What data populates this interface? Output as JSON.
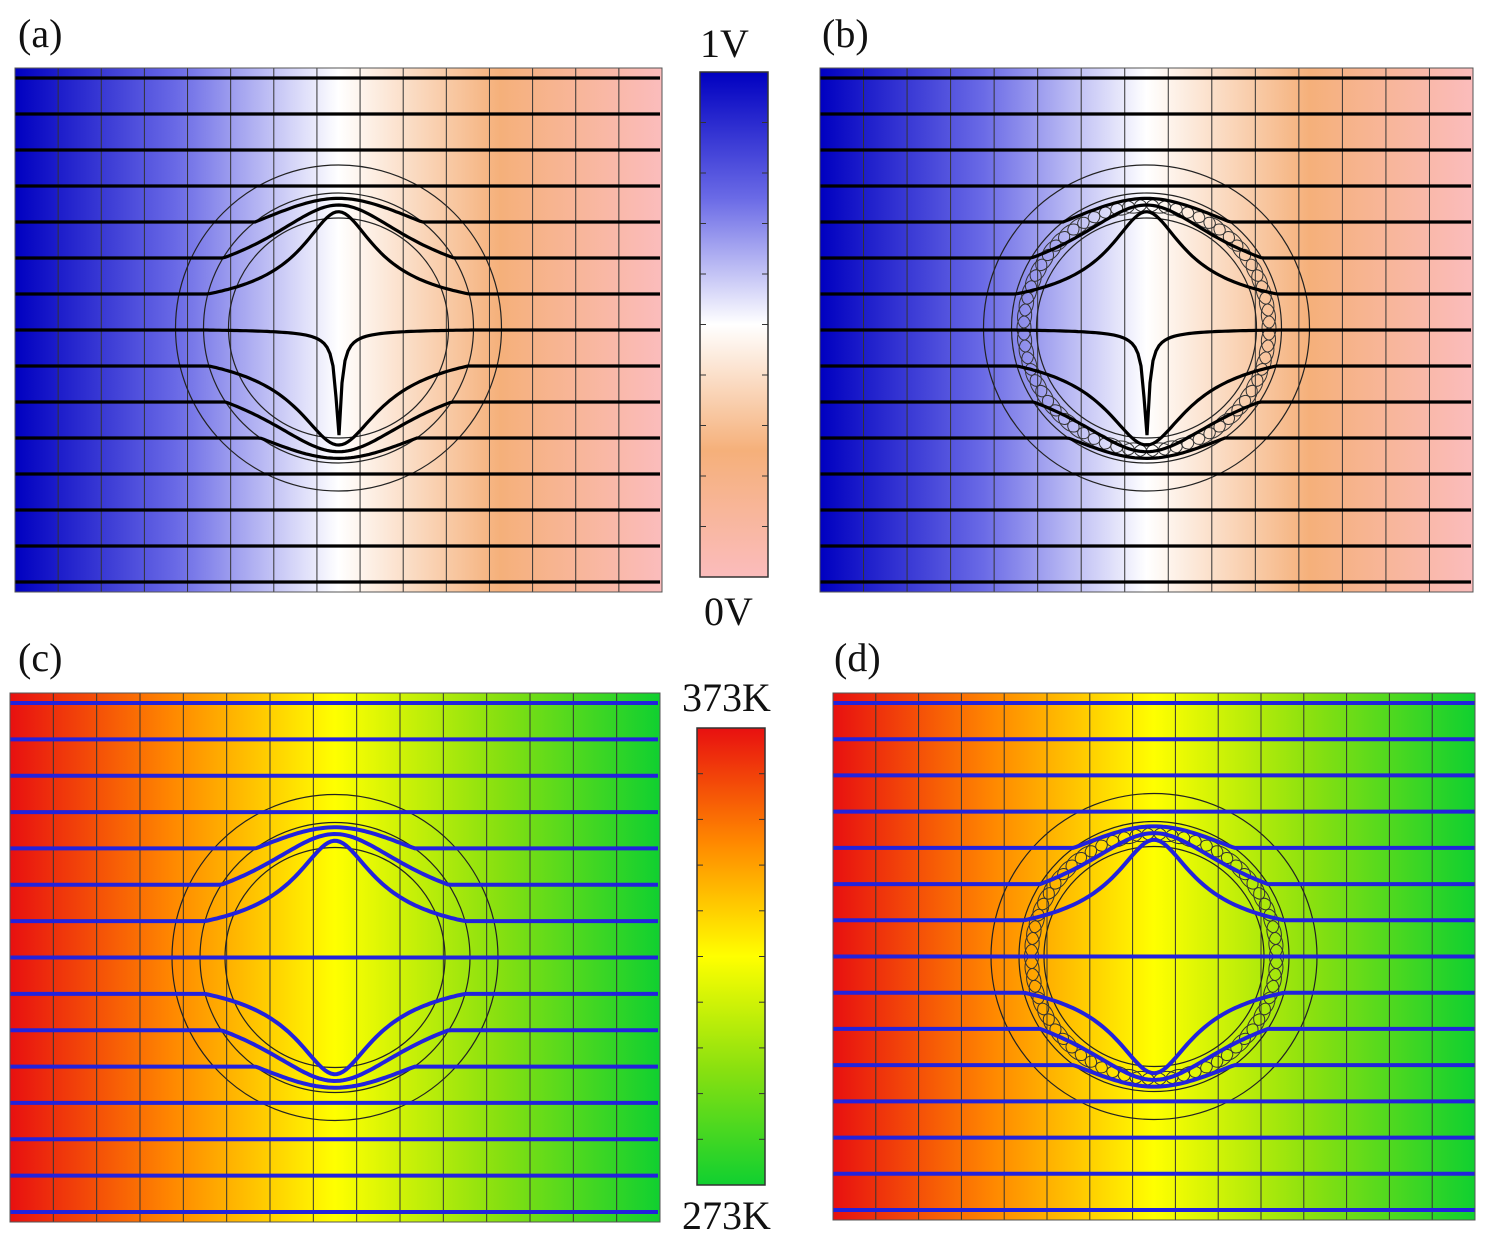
{
  "panels": [
    {
      "label": "(a)",
      "field": "electric",
      "cloak": "transformation",
      "line_color": "#000000"
    },
    {
      "label": "(b)",
      "field": "electric",
      "cloak": "looped",
      "line_color": "#000000"
    },
    {
      "label": "(c)",
      "field": "thermal",
      "cloak": "transformation",
      "line_color": "#2222dd"
    },
    {
      "label": "(d)",
      "field": "thermal",
      "cloak": "looped",
      "line_color": "#2222dd"
    }
  ],
  "colorbars": {
    "voltage": {
      "max_label": "1V",
      "min_label": "0V",
      "colors": [
        "#0000c0",
        "#6a6ae6",
        "#ffffff",
        "#f5b07a",
        "#fbbcbc"
      ]
    },
    "temperature": {
      "max_label": "373K",
      "min_label": "273K",
      "colors": [
        "#e81010",
        "#ff8800",
        "#ffff00",
        "#88e010",
        "#10d030"
      ]
    }
  }
}
